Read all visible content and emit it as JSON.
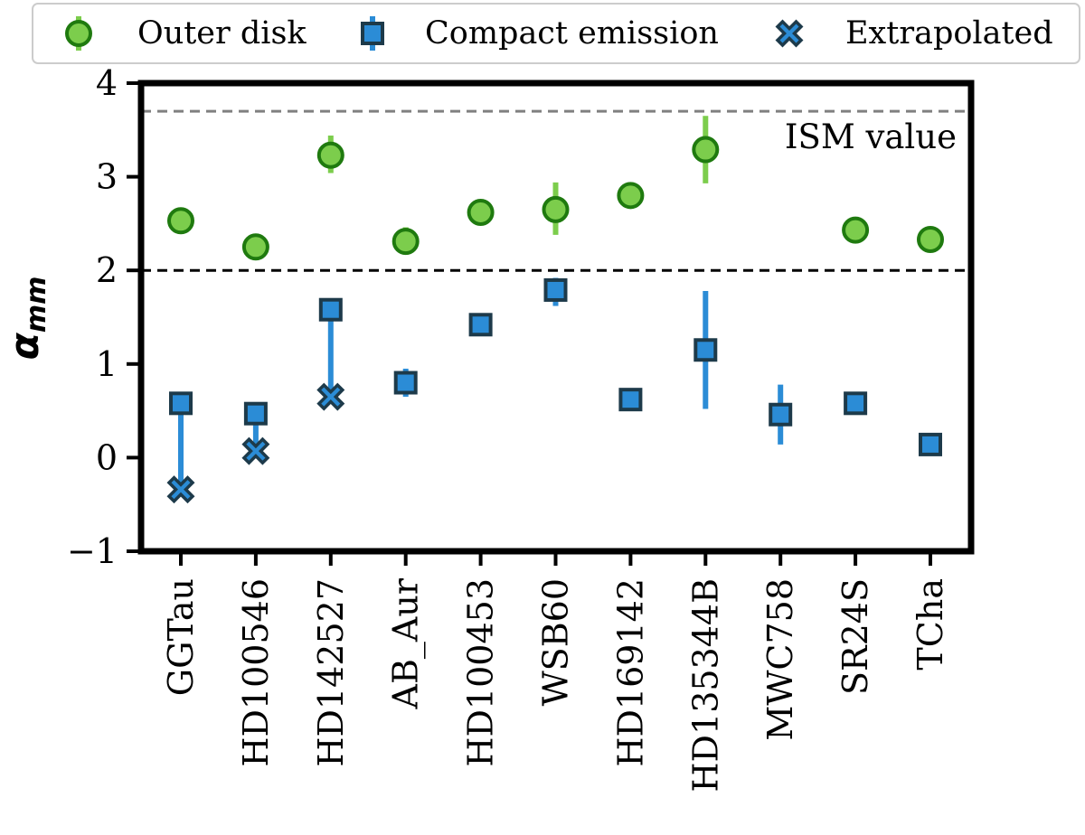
{
  "chart_data": {
    "type": "scatter",
    "title": "",
    "xlabel": "",
    "ylabel": "α",
    "ylabel_subscript": "mm",
    "ylim": [
      -1,
      4
    ],
    "yticks": [
      -1,
      0,
      1,
      2,
      3,
      4
    ],
    "ytick_labels": [
      "−1",
      "0",
      "1",
      "2",
      "3",
      "4"
    ],
    "categories": [
      "GGTau",
      "HD100546",
      "HD142527",
      "AB_Aur",
      "HD100453",
      "WSB60",
      "HD169142",
      "HD135344B",
      "MWC758",
      "SR24S",
      "TCha"
    ],
    "legend_position": "top",
    "series": [
      {
        "name": "Outer disk",
        "marker": "circle",
        "color": "#7ccd4c",
        "edge_color": "#1f7a0f",
        "values": [
          2.53,
          2.25,
          3.23,
          2.31,
          2.62,
          2.65,
          2.8,
          3.29,
          null,
          2.43,
          2.33
        ],
        "err_low": [
          2.53,
          2.25,
          3.04,
          2.18,
          2.62,
          2.38,
          2.8,
          2.93,
          null,
          2.43,
          2.33
        ],
        "err_high": [
          2.53,
          2.25,
          3.44,
          2.46,
          2.62,
          2.94,
          2.8,
          3.65,
          null,
          2.43,
          2.33
        ]
      },
      {
        "name": "Compact emission",
        "marker": "square",
        "color": "#2b8cd6",
        "edge_color": "#1d3a4a",
        "values": [
          0.58,
          0.47,
          1.58,
          0.8,
          1.42,
          1.79,
          0.62,
          1.15,
          0.46,
          0.58,
          0.14
        ],
        "err_low": [
          -0.33,
          0.08,
          0.65,
          0.65,
          1.42,
          1.62,
          0.62,
          0.52,
          0.14,
          0.58,
          0.14
        ],
        "err_high": [
          0.58,
          0.47,
          1.58,
          0.95,
          1.42,
          1.92,
          0.62,
          1.78,
          0.78,
          0.58,
          0.14
        ]
      },
      {
        "name": "Extrapolated",
        "marker": "x",
        "color": "#2b8cd6",
        "edge_color": "#1d3a4a",
        "values": [
          -0.34,
          0.07,
          0.65,
          null,
          null,
          null,
          null,
          null,
          null,
          null,
          null
        ]
      }
    ],
    "reference_lines": [
      {
        "name": "ISM value",
        "y": 3.7,
        "color": "#808080",
        "style": "dashed",
        "label": "ISM value"
      },
      {
        "name": "threshold",
        "y": 2.0,
        "color": "#000000",
        "style": "dashed",
        "label": ""
      }
    ]
  },
  "legend": {
    "items": [
      "Outer disk",
      "Compact emission",
      "Extrapolated"
    ]
  }
}
